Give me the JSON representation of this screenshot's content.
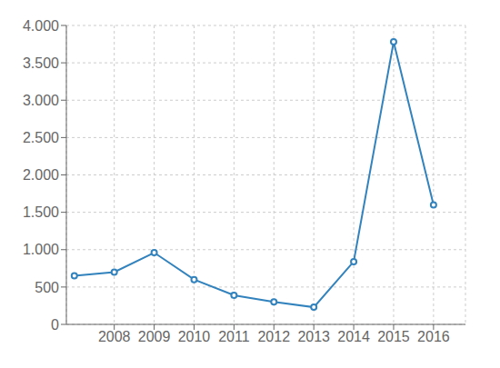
{
  "chart_data": {
    "type": "line",
    "x": [
      2007,
      2008,
      2009,
      2010,
      2011,
      2012,
      2013,
      2014,
      2015,
      2016
    ],
    "values": [
      650,
      700,
      960,
      600,
      390,
      300,
      230,
      840,
      3780,
      1600
    ],
    "xlim": [
      2006.8,
      2016.8
    ],
    "xticks": [
      2008,
      2009,
      2010,
      2011,
      2012,
      2013,
      2014,
      2015,
      2016
    ],
    "ylim": [
      0,
      4000
    ],
    "yticks": [
      0,
      500,
      {
        "value": 1000,
        "label": "1.000"
      },
      {
        "value": 1500,
        "label": "1.500"
      },
      {
        "value": 2000,
        "label": "2.000"
      },
      {
        "value": 2500,
        "label": "2.500"
      },
      {
        "value": 3000,
        "label": "3.000"
      },
      {
        "value": 3500,
        "label": "3.500"
      },
      {
        "value": 4000,
        "label": "4.000"
      }
    ],
    "grid": true,
    "marker": "circle"
  }
}
